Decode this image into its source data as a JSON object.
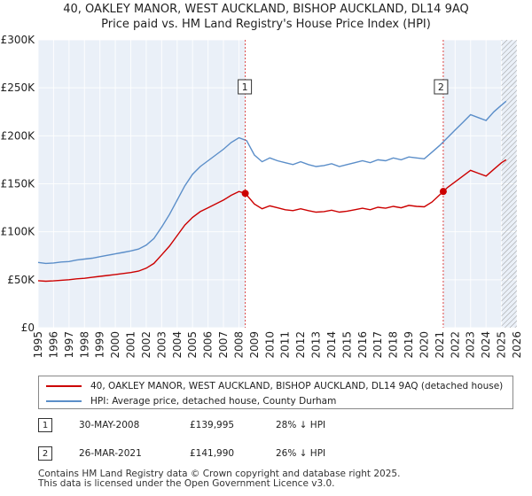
{
  "title_line1": "40, OAKLEY MANOR, WEST AUCKLAND, BISHOP AUCKLAND, DL14 9AQ",
  "title_line2": "Price paid vs. HM Land Registry's House Price Index (HPI)",
  "chart_data": {
    "type": "line",
    "title": "40, OAKLEY MANOR, WEST AUCKLAND, BISHOP AUCKLAND, DL14 9AQ — Price paid vs. HM Land Registry's House Price Index (HPI)",
    "xlim": [
      1995,
      2026
    ],
    "ylim": [
      0,
      300000
    ],
    "y_ticks": [
      0,
      50000,
      100000,
      150000,
      200000,
      250000,
      300000
    ],
    "y_tick_labels": [
      "£0",
      "£50K",
      "£100K",
      "£150K",
      "£200K",
      "£250K",
      "£300K"
    ],
    "x_ticks": [
      1995,
      1996,
      1997,
      1998,
      1999,
      2000,
      2001,
      2002,
      2003,
      2004,
      2005,
      2006,
      2007,
      2008,
      2009,
      2010,
      2011,
      2012,
      2013,
      2014,
      2015,
      2016,
      2017,
      2018,
      2019,
      2020,
      2021,
      2022,
      2023,
      2024,
      2025,
      2026
    ],
    "grid": true,
    "series": [
      {
        "name": "HPI: Average price, detached house, County Durham",
        "color": "#5b8ec9",
        "points": [
          [
            1995.0,
            68000
          ],
          [
            1995.5,
            67000
          ],
          [
            1996.0,
            67500
          ],
          [
            1996.5,
            68500
          ],
          [
            1997.0,
            69000
          ],
          [
            1997.5,
            70500
          ],
          [
            1998.0,
            71500
          ],
          [
            1998.5,
            72500
          ],
          [
            1999.0,
            74000
          ],
          [
            1999.5,
            75500
          ],
          [
            2000.0,
            77000
          ],
          [
            2000.5,
            78500
          ],
          [
            2001.0,
            80000
          ],
          [
            2001.5,
            82000
          ],
          [
            2002.0,
            86000
          ],
          [
            2002.5,
            93000
          ],
          [
            2003.0,
            105000
          ],
          [
            2003.5,
            118000
          ],
          [
            2004.0,
            133000
          ],
          [
            2004.5,
            148000
          ],
          [
            2005.0,
            160000
          ],
          [
            2005.5,
            168000
          ],
          [
            2006.0,
            174000
          ],
          [
            2006.5,
            180000
          ],
          [
            2007.0,
            186000
          ],
          [
            2007.5,
            193000
          ],
          [
            2008.0,
            198000
          ],
          [
            2008.5,
            195000
          ],
          [
            2009.0,
            180000
          ],
          [
            2009.5,
            173000
          ],
          [
            2010.0,
            177000
          ],
          [
            2010.5,
            174000
          ],
          [
            2011.0,
            172000
          ],
          [
            2011.5,
            170000
          ],
          [
            2012.0,
            173000
          ],
          [
            2012.5,
            170000
          ],
          [
            2013.0,
            168000
          ],
          [
            2013.5,
            169000
          ],
          [
            2014.0,
            171000
          ],
          [
            2014.5,
            168000
          ],
          [
            2015.0,
            170000
          ],
          [
            2015.5,
            172000
          ],
          [
            2016.0,
            174000
          ],
          [
            2016.5,
            172000
          ],
          [
            2017.0,
            175000
          ],
          [
            2017.5,
            174000
          ],
          [
            2018.0,
            177000
          ],
          [
            2018.5,
            175000
          ],
          [
            2019.0,
            178000
          ],
          [
            2019.5,
            177000
          ],
          [
            2020.0,
            176000
          ],
          [
            2020.5,
            183000
          ],
          [
            2021.0,
            190000
          ],
          [
            2021.5,
            198000
          ],
          [
            2022.0,
            206000
          ],
          [
            2022.5,
            214000
          ],
          [
            2023.0,
            222000
          ],
          [
            2023.5,
            219000
          ],
          [
            2024.0,
            216000
          ],
          [
            2024.5,
            225000
          ],
          [
            2025.0,
            232000
          ],
          [
            2025.3,
            236000
          ]
        ]
      },
      {
        "name": "40, OAKLEY MANOR, WEST AUCKLAND, BISHOP AUCKLAND, DL14 9AQ (detached house)",
        "color": "#cc0000",
        "points": [
          [
            1995.0,
            49000
          ],
          [
            1995.5,
            48500
          ],
          [
            1996.0,
            48800
          ],
          [
            1996.5,
            49500
          ],
          [
            1997.0,
            50000
          ],
          [
            1997.5,
            51000
          ],
          [
            1998.0,
            51500
          ],
          [
            1998.5,
            52500
          ],
          [
            1999.0,
            53500
          ],
          [
            1999.5,
            54500
          ],
          [
            2000.0,
            55500
          ],
          [
            2000.5,
            56500
          ],
          [
            2001.0,
            57500
          ],
          [
            2001.5,
            59000
          ],
          [
            2002.0,
            62000
          ],
          [
            2002.5,
            67000
          ],
          [
            2003.0,
            76000
          ],
          [
            2003.5,
            85000
          ],
          [
            2004.0,
            96000
          ],
          [
            2004.5,
            107000
          ],
          [
            2005.0,
            115000
          ],
          [
            2005.5,
            121000
          ],
          [
            2006.0,
            125000
          ],
          [
            2006.5,
            129000
          ],
          [
            2007.0,
            133000
          ],
          [
            2007.5,
            138000
          ],
          [
            2008.0,
            142000
          ],
          [
            2008.41,
            139995
          ],
          [
            2009.0,
            129000
          ],
          [
            2009.5,
            124000
          ],
          [
            2010.0,
            127000
          ],
          [
            2010.5,
            125000
          ],
          [
            2011.0,
            123000
          ],
          [
            2011.5,
            122000
          ],
          [
            2012.0,
            124000
          ],
          [
            2012.5,
            122000
          ],
          [
            2013.0,
            120500
          ],
          [
            2013.5,
            121000
          ],
          [
            2014.0,
            122500
          ],
          [
            2014.5,
            120500
          ],
          [
            2015.0,
            121500
          ],
          [
            2015.5,
            123000
          ],
          [
            2016.0,
            124500
          ],
          [
            2016.5,
            123000
          ],
          [
            2017.0,
            125500
          ],
          [
            2017.5,
            124500
          ],
          [
            2018.0,
            126500
          ],
          [
            2018.5,
            125000
          ],
          [
            2019.0,
            127500
          ],
          [
            2019.5,
            126500
          ],
          [
            2020.0,
            126000
          ],
          [
            2020.5,
            131000
          ],
          [
            2021.23,
            141990
          ],
          [
            2021.5,
            146000
          ],
          [
            2022.0,
            152000
          ],
          [
            2022.5,
            158000
          ],
          [
            2023.0,
            164000
          ],
          [
            2023.5,
            161000
          ],
          [
            2024.0,
            158000
          ],
          [
            2024.5,
            165000
          ],
          [
            2025.0,
            172000
          ],
          [
            2025.3,
            175000
          ]
        ]
      }
    ],
    "markers": [
      {
        "id": "1",
        "x": 2008.41,
        "y": 139995
      },
      {
        "id": "2",
        "x": 2021.23,
        "y": 141990
      }
    ],
    "forecast_from": 2025.0
  },
  "legend": {
    "items": [
      {
        "label": "40, OAKLEY MANOR, WEST AUCKLAND, BISHOP AUCKLAND, DL14 9AQ (detached house)",
        "color": "#cc0000"
      },
      {
        "label": "HPI: Average price, detached house, County Durham",
        "color": "#5b8ec9"
      }
    ]
  },
  "transactions": [
    {
      "num": "1",
      "date": "30-MAY-2008",
      "price": "£139,995",
      "hpi": "28% ↓ HPI"
    },
    {
      "num": "2",
      "date": "26-MAR-2021",
      "price": "£141,990",
      "hpi": "26% ↓ HPI"
    }
  ],
  "footer": {
    "line1": "Contains HM Land Registry data © Crown copyright and database right 2025.",
    "line2": "This data is licensed under the Open Government Licence v3.0."
  }
}
